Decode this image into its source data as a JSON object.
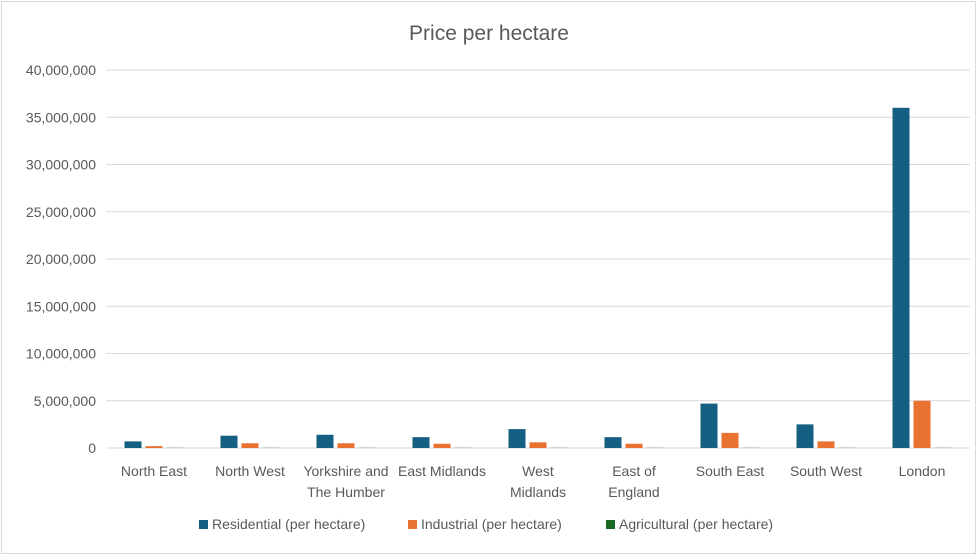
{
  "chart_data": {
    "type": "bar",
    "title": "Price per hectare",
    "categories": [
      [
        "North East"
      ],
      [
        "North West"
      ],
      [
        "Yorkshire and",
        "The Humber"
      ],
      [
        "East Midlands"
      ],
      [
        "West",
        "Midlands"
      ],
      [
        "East of",
        "England"
      ],
      [
        "South East"
      ],
      [
        "South West"
      ],
      [
        "London"
      ]
    ],
    "series": [
      {
        "name": "Residential (per hectare)",
        "color": "#156082",
        "values": [
          700000,
          1300000,
          1400000,
          1150000,
          2000000,
          1150000,
          4700000,
          2500000,
          36000000
        ]
      },
      {
        "name": "Industrial (per hectare)",
        "color": "#e97132",
        "values": [
          200000,
          500000,
          500000,
          450000,
          600000,
          450000,
          1600000,
          700000,
          5000000
        ]
      },
      {
        "name": "Agricultural (per hectare)",
        "color": "#196b24",
        "values": [
          20000,
          20000,
          20000,
          20000,
          20000,
          20000,
          20000,
          20000,
          20000
        ]
      }
    ],
    "ylim": [
      0,
      40000000
    ],
    "y_ticks": [
      "0",
      "5,000,000",
      "10,000,000",
      "15,000,000",
      "20,000,000",
      "25,000,000",
      "30,000,000",
      "35,000,000",
      "40,000,000"
    ],
    "grid": true,
    "legend": "bottom",
    "xlabel": "",
    "ylabel": ""
  }
}
